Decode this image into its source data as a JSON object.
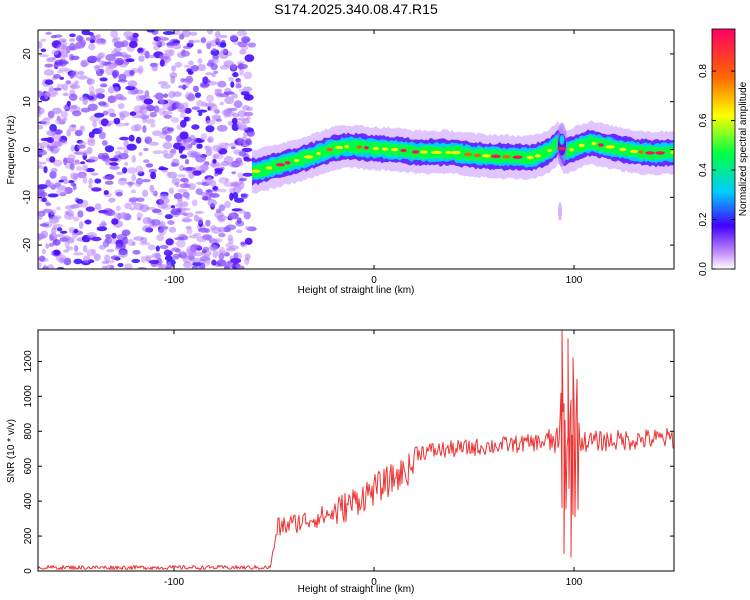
{
  "title": "S174.2025.340.08.47.R15",
  "chart_data": [
    {
      "type": "heatmap",
      "name": "spectrogram",
      "xlabel": "Height of straight line (km)",
      "ylabel": "Frequency (Hz)",
      "xlim": [
        -168,
        150
      ],
      "ylim": [
        -25,
        25
      ],
      "xticks": [
        -100,
        0,
        100
      ],
      "yticks": [
        -20,
        -10,
        0,
        10,
        20
      ],
      "noise_region_x": [
        -168,
        -61
      ],
      "signal_ridge": {
        "x": [
          -61,
          -58,
          -52,
          -45,
          -38,
          -30,
          -22,
          -15,
          -10,
          0,
          10,
          20,
          30,
          40,
          50,
          60,
          70,
          78,
          83,
          88,
          92,
          95,
          98,
          102,
          108,
          115,
          122,
          130,
          140,
          148
        ],
        "y": [
          -4.6,
          -4.5,
          -3.8,
          -3.0,
          -2.2,
          -1.2,
          0.0,
          0.6,
          0.6,
          0.2,
          0.0,
          -0.5,
          -0.6,
          -0.6,
          -1.2,
          -1.4,
          -1.6,
          -1.7,
          -1.2,
          -0.2,
          1.5,
          -0.6,
          -0.2,
          0.6,
          1.4,
          0.8,
          0.2,
          -0.4,
          -0.8,
          -0.6
        ]
      },
      "colorbar": {
        "label": "Normalized spectral amplitude",
        "range": [
          0,
          0.97
        ],
        "ticks": [
          0.0,
          0.2,
          0.4,
          0.6,
          0.8
        ]
      }
    },
    {
      "type": "line",
      "name": "snr",
      "xlabel": "Height of straight line (km)",
      "ylabel": "SNR (10 * v/v)",
      "xlim": [
        -168,
        150
      ],
      "ylim": [
        0,
        1380
      ],
      "xticks": [
        -100,
        0,
        100
      ],
      "yticks": [
        0,
        200,
        400,
        600,
        800,
        1000,
        1200
      ],
      "color": "#ee3333",
      "segments": [
        {
          "x": [
            -168,
            -52
          ],
          "mean": [
            20,
            20
          ],
          "noise": 12
        },
        {
          "x": [
            -52,
            -48
          ],
          "mean": [
            20,
            250
          ],
          "noise": 20
        },
        {
          "x": [
            -48,
            -20
          ],
          "mean": [
            250,
            330
          ],
          "noise": 60
        },
        {
          "x": [
            -20,
            20
          ],
          "mean": [
            330,
            600
          ],
          "noise": 90
        },
        {
          "x": [
            20,
            85
          ],
          "mean": [
            680,
            740
          ],
          "noise": 50
        },
        {
          "x": [
            85,
            92
          ],
          "mean": [
            740,
            740
          ],
          "noise": 80
        },
        {
          "x": [
            92,
            103
          ],
          "mean": [
            720,
            720
          ],
          "noise": 420
        },
        {
          "x": [
            103,
            150
          ],
          "mean": [
            740,
            760
          ],
          "noise": 60
        }
      ],
      "spikes": [
        {
          "x": 94,
          "y": 1380
        },
        {
          "x": 95,
          "y": 100
        },
        {
          "x": 97,
          "y": 1330
        },
        {
          "x": 98.5,
          "y": 80
        },
        {
          "x": 99.5,
          "y": 1220
        }
      ]
    }
  ]
}
